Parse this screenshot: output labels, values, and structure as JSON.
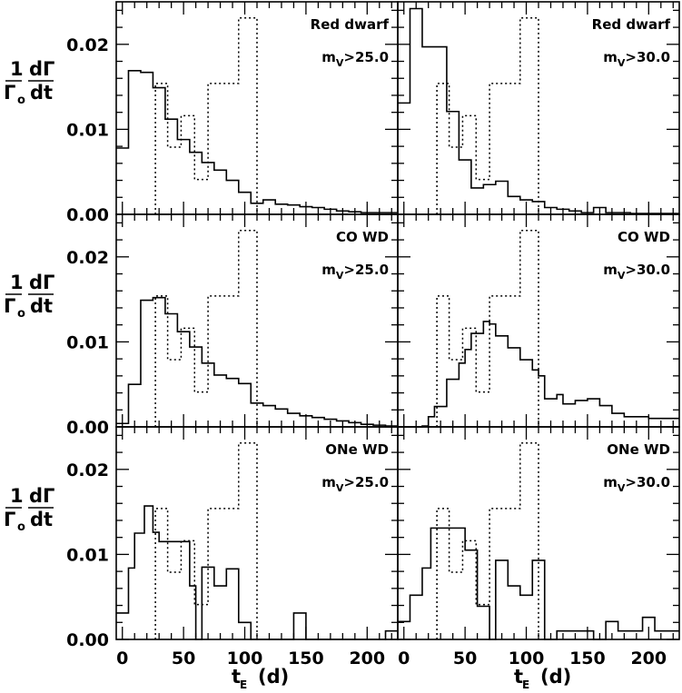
{
  "figure": {
    "ylabel": {
      "numerator": "1",
      "denominator": "Γ",
      "subscript": "o",
      "d_num": "dΓ",
      "d_den": "dt"
    },
    "xlabel": {
      "main": "t",
      "subscript": "E",
      "unit": "(d)"
    }
  },
  "chart_data": [
    {
      "type": "bar",
      "title": "Red dwarf",
      "condition": "m",
      "condition_sub": "V",
      "condition_rest": ">25.0",
      "xlim": [
        -5,
        225
      ],
      "ylim": [
        0,
        0.025
      ],
      "bin_edges": [
        -5,
        5,
        15,
        25,
        35,
        45,
        55,
        65,
        75,
        85,
        95,
        105,
        115,
        125,
        135,
        145,
        155,
        165,
        175,
        185,
        195,
        205,
        215,
        225
      ],
      "solid_values": [
        0.0078,
        0.0169,
        0.0167,
        0.0149,
        0.0112,
        0.0088,
        0.0073,
        0.0061,
        0.0052,
        0.004,
        0.0026,
        0.0013,
        0.0017,
        0.0012,
        0.0011,
        0.0009,
        0.0008,
        0.0006,
        0.0004,
        0.0003,
        0.0002,
        0.0002,
        0.0002
      ],
      "dotted_edges": [
        27,
        37,
        48,
        59,
        70,
        95,
        110
      ],
      "dotted_values": [
        0.0154,
        0.0079,
        0.0116,
        0.0041,
        0.0154,
        0.0231
      ],
      "xticks": [
        0,
        50,
        100,
        150,
        200
      ],
      "yticks": [
        0.0,
        0.01,
        0.02
      ]
    },
    {
      "type": "bar",
      "title": "Red dwarf",
      "condition": "m",
      "condition_sub": "V",
      "condition_rest": ">30.0",
      "xlim": [
        -5,
        225
      ],
      "ylim": [
        0,
        0.025
      ],
      "bin_edges": [
        -5,
        5,
        15,
        25,
        35,
        45,
        55,
        65,
        75,
        85,
        95,
        105,
        115,
        125,
        135,
        145,
        155,
        165,
        175,
        185,
        195,
        205,
        215,
        225
      ],
      "solid_values": [
        0.0131,
        0.0242,
        0.0197,
        0.0197,
        0.0121,
        0.0064,
        0.0031,
        0.0035,
        0.0039,
        0.0021,
        0.0017,
        0.0015,
        0.0008,
        0.0006,
        0.0004,
        0.0002,
        0.0008,
        0.0002,
        0.0002,
        0.0001,
        0.0001,
        0.0001,
        0.0001
      ],
      "dotted_edges": [
        27,
        37,
        48,
        59,
        70,
        95,
        110
      ],
      "dotted_values": [
        0.0154,
        0.0079,
        0.0116,
        0.0041,
        0.0154,
        0.0231
      ],
      "xticks": [
        0,
        50,
        100,
        150,
        200
      ],
      "yticks": [
        0.0,
        0.01,
        0.02
      ]
    },
    {
      "type": "bar",
      "title": "CO WD",
      "condition": "m",
      "condition_sub": "V",
      "condition_rest": ">25.0",
      "xlim": [
        -5,
        225
      ],
      "ylim": [
        0,
        0.025
      ],
      "bin_edges": [
        -5,
        5,
        15,
        25,
        35,
        45,
        55,
        65,
        75,
        85,
        95,
        105,
        115,
        125,
        135,
        145,
        155,
        165,
        175,
        185,
        195,
        205,
        215,
        225
      ],
      "solid_values": [
        0.0004,
        0.005,
        0.0149,
        0.0152,
        0.0133,
        0.0112,
        0.0094,
        0.0075,
        0.0061,
        0.0057,
        0.0051,
        0.0028,
        0.0025,
        0.0021,
        0.0016,
        0.0013,
        0.0011,
        0.0009,
        0.0007,
        0.0005,
        0.0003,
        0.0002,
        0.0001
      ],
      "dotted_edges": [
        27,
        37,
        48,
        59,
        70,
        95,
        110
      ],
      "dotted_values": [
        0.0154,
        0.0079,
        0.0116,
        0.0041,
        0.0154,
        0.0231
      ],
      "xticks": [
        0,
        50,
        100,
        150,
        200
      ],
      "yticks": [
        0.0,
        0.01,
        0.02
      ]
    },
    {
      "type": "bar",
      "title": "CO WD",
      "condition": "m",
      "condition_sub": "V",
      "condition_rest": ">30.0",
      "xlim": [
        -5,
        225
      ],
      "ylim": [
        0,
        0.025
      ],
      "bin_edges": [
        -5,
        5,
        15,
        25,
        35,
        45,
        55,
        65,
        75,
        85,
        95,
        105,
        115,
        125,
        135,
        145,
        155,
        165,
        175,
        185,
        195,
        205,
        215,
        225
      ],
      "solid_values": [
        0.0,
        0.0,
        0.0001,
        0.0012,
        0.0024,
        0.0056,
        0.0075,
        0.0091,
        0.011,
        0.0124,
        0.0121,
        0.0107,
        0.0093,
        0.0079,
        0.0067,
        0.006,
        0.0033,
        0.0038,
        0.0027,
        0.0031,
        0.0033,
        0.0025,
        0.0016,
        0.0012,
        0.001,
        0.0011
      ],
      "bin_edges_override": [
        -5,
        5,
        15,
        20,
        25,
        35,
        45,
        50,
        55,
        65,
        70,
        75,
        85,
        95,
        105,
        110,
        115,
        125,
        130,
        140,
        150,
        160,
        170,
        180,
        200,
        225
      ],
      "dotted_edges": [
        27,
        37,
        48,
        59,
        70,
        95,
        110
      ],
      "dotted_values": [
        0.0154,
        0.0079,
        0.0116,
        0.0041,
        0.0154,
        0.0231
      ],
      "xticks": [
        0,
        50,
        100,
        150,
        200
      ],
      "yticks": [
        0.0,
        0.01,
        0.02
      ]
    },
    {
      "type": "bar",
      "title": "ONe WD",
      "condition": "m",
      "condition_sub": "V",
      "condition_rest": ">25.0",
      "xlim": [
        -5,
        225
      ],
      "ylim": [
        0,
        0.025
      ],
      "bin_edges": [
        -5,
        5,
        15,
        25,
        35,
        45,
        55,
        65,
        75,
        85,
        95,
        105,
        115,
        125,
        135,
        145,
        155,
        165,
        175,
        185,
        195,
        205,
        215,
        225
      ],
      "solid_values": [
        0.0031,
        0.0084,
        0.0125,
        0.0157,
        0.0126,
        0.0115,
        0.0115,
        0.0063,
        0.0,
        0.0085,
        0.0063,
        0.0083,
        0.002,
        0.0,
        0.0,
        0.0,
        0.0031,
        0.0,
        0.0,
        0.0,
        0.0,
        0.0,
        0.001
      ],
      "bin_edges_override": [
        -5,
        5,
        10,
        18,
        25,
        30,
        40,
        55,
        60,
        65,
        75,
        85,
        95,
        105,
        115,
        130,
        140,
        150,
        165,
        175,
        195,
        205,
        215,
        225
      ],
      "dotted_edges": [
        27,
        37,
        48,
        59,
        70,
        95,
        110
      ],
      "dotted_values": [
        0.0154,
        0.0079,
        0.0116,
        0.0041,
        0.0154,
        0.0231
      ],
      "xticks": [
        0,
        50,
        100,
        150,
        200
      ],
      "yticks": [
        0.0,
        0.01,
        0.02
      ]
    },
    {
      "type": "bar",
      "title": "ONe WD",
      "condition": "m",
      "condition_sub": "V",
      "condition_rest": ">30.0",
      "xlim": [
        -5,
        225
      ],
      "ylim": [
        0,
        0.025
      ],
      "bin_edges": [
        -5,
        5,
        15,
        25,
        35,
        45,
        55,
        65,
        75,
        85,
        95,
        105,
        115,
        125,
        135,
        145,
        155,
        165,
        175,
        185,
        195,
        205,
        215,
        225
      ],
      "solid_values": [
        0.0021,
        0.0052,
        0.0084,
        0.0131,
        0.0131,
        0.0131,
        0.0105,
        0.0039,
        0.0,
        0.0093,
        0.0063,
        0.0052,
        0.0093,
        0.0,
        0.001,
        0.001,
        0.001,
        0.0,
        0.0021,
        0.001,
        0.001,
        0.0026,
        0.001
      ],
      "bin_edges_override": [
        -5,
        5,
        15,
        22,
        30,
        40,
        50,
        60,
        70,
        75,
        85,
        95,
        105,
        115,
        125,
        135,
        145,
        155,
        165,
        175,
        185,
        195,
        205,
        225
      ],
      "dotted_edges": [
        27,
        37,
        48,
        59,
        70,
        95,
        110
      ],
      "dotted_values": [
        0.0154,
        0.0079,
        0.0116,
        0.0041,
        0.0154,
        0.0231
      ],
      "xticks": [
        0,
        50,
        100,
        150,
        200
      ],
      "yticks": [
        0.0,
        0.01,
        0.02
      ]
    }
  ],
  "tick_text": {
    "yticks": [
      "0.00",
      "0.01",
      "0.02"
    ],
    "xticks": [
      "0",
      "50",
      "100",
      "150",
      "200"
    ]
  }
}
